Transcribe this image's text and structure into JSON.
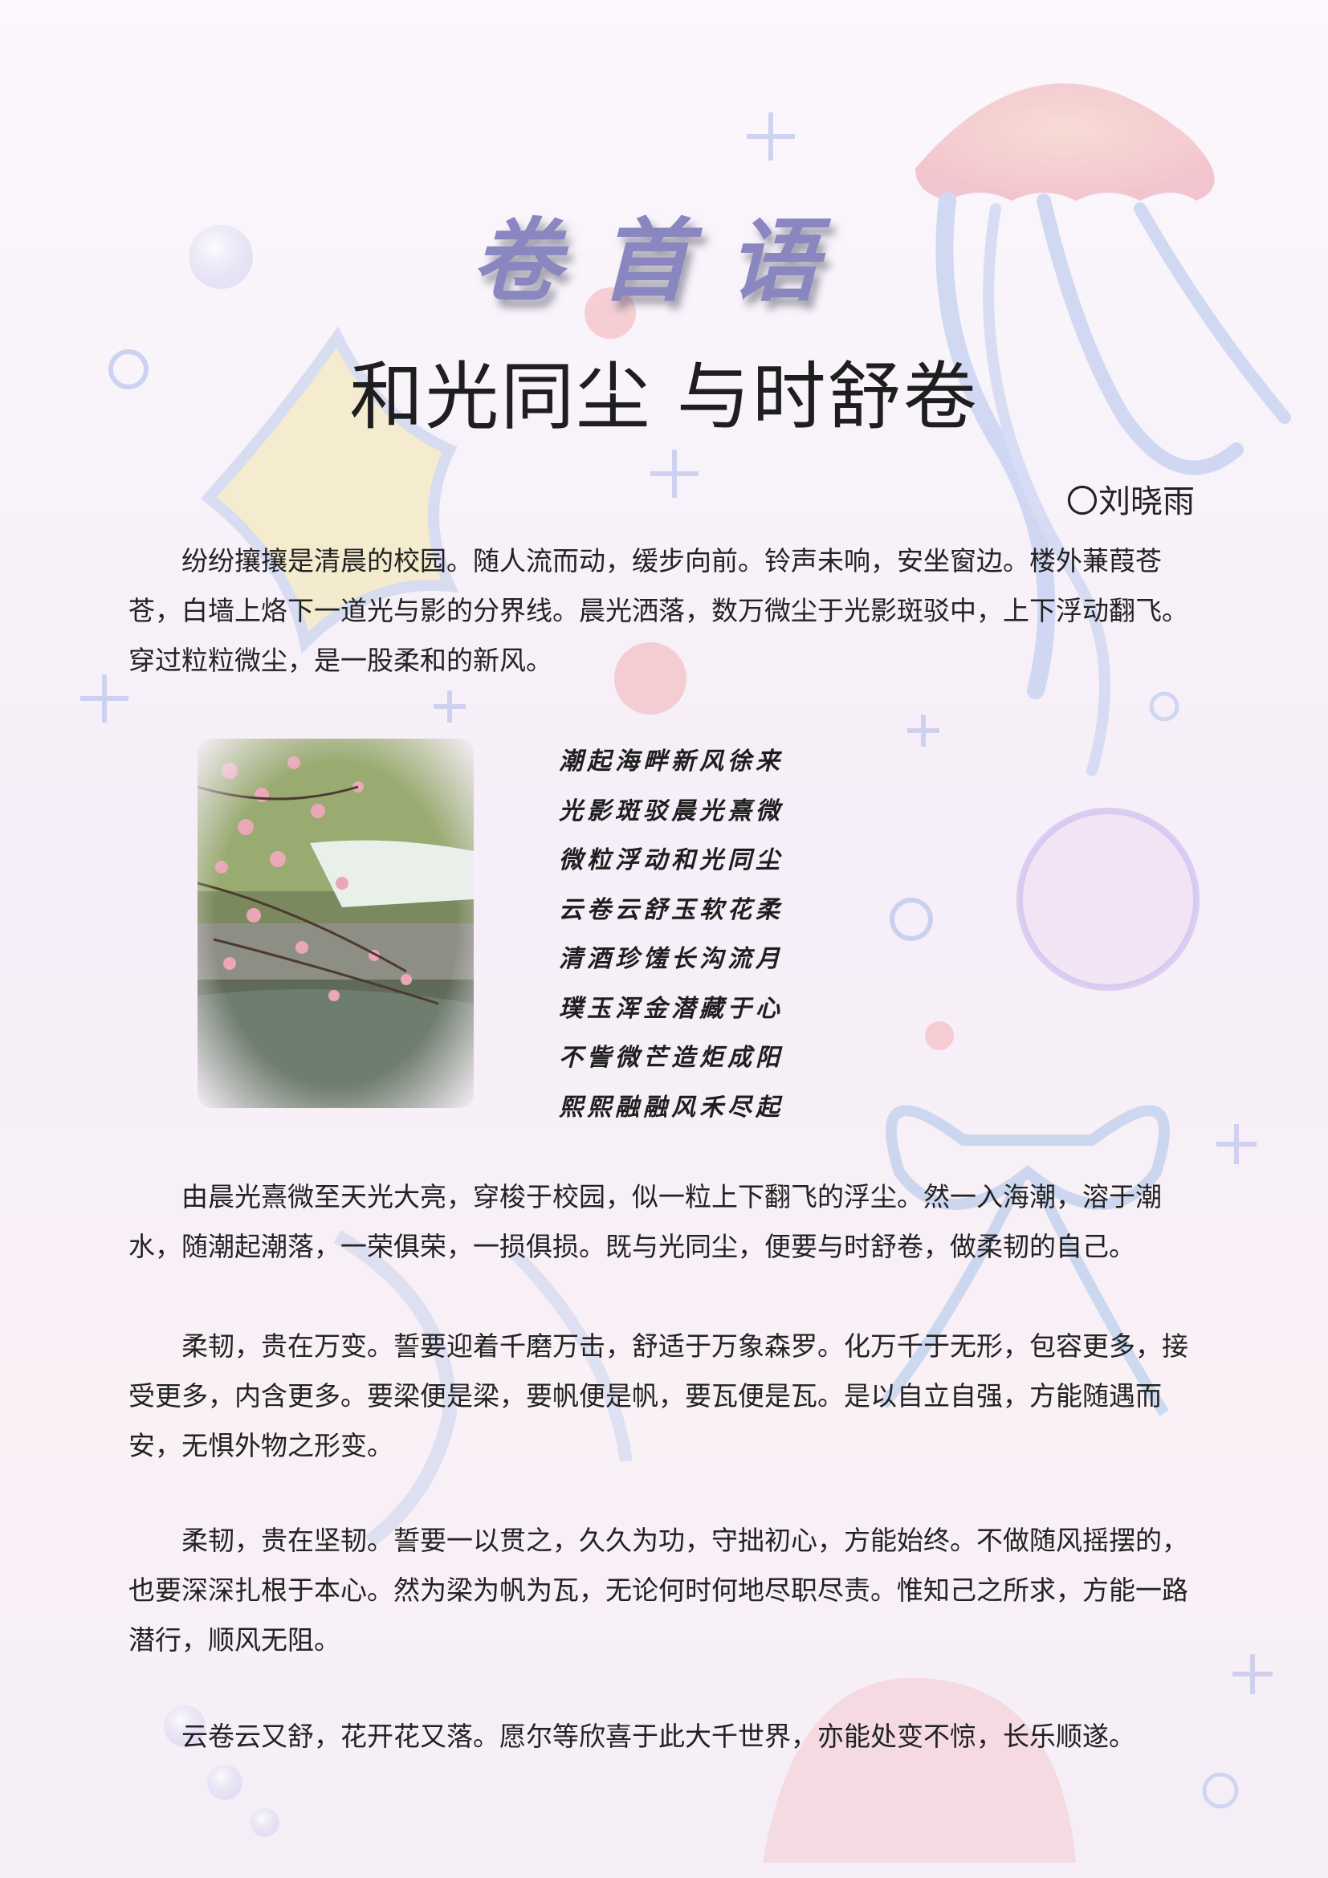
{
  "heading": "卷首语",
  "title": "和光同尘 与时舒卷",
  "author": "〇刘晓雨",
  "paragraphs": [
    "纷纷攘攘是清晨的校园。随人流而动，缓步向前。铃声未响，安坐窗边。楼外蒹葭苍苍，白墙上烙下一道光与影的分界线。晨光洒落，数万微尘于光影斑驳中，上下浮动翻飞。穿过粒粒微尘，是一股柔和的新风。",
    "由晨光熹微至天光大亮，穿梭于校园，似一粒上下翻飞的浮尘。然一入海潮，溶于潮水，随潮起潮落，一荣俱荣，一损俱损。既与光同尘，便要与时舒卷，做柔韧的自己。",
    "柔韧，贵在万变。誓要迎着千磨万击，舒适于万象森罗。化万千于无形，包容更多，接受更多，内含更多。要梁便是梁，要帆便是帆，要瓦便是瓦。是以自立自强，方能随遇而安，无惧外物之形变。",
    "柔韧，贵在坚韧。誓要一以贯之，久久为功，守拙初心，方能始终。不做随风摇摆的，也要深深扎根于本心。然为梁为帆为瓦，无论何时何地尽职尽责。惟知己之所求，方能一路潜行，顺风无阻。",
    "云卷云又舒，花开花又落。愿尔等欣喜于此大千世界，亦能处变不惊，长乐顺遂。"
  ],
  "poem": [
    "潮起海畔新风徐来",
    "光影斑驳晨光熹微",
    "微粒浮动和光同尘",
    "云卷云舒玉软花柔",
    "清酒珍馐长沟流月",
    "璞玉浑金潜藏于心",
    "不訾微芒造炬成阳",
    "熙熙融融风禾尽起"
  ],
  "colors": {
    "heading": "#8a86c0",
    "background_top": "#fbf7fc",
    "jellyfish_pink": "#f2c2c8",
    "tentacle_blue": "#b9c8ea"
  }
}
